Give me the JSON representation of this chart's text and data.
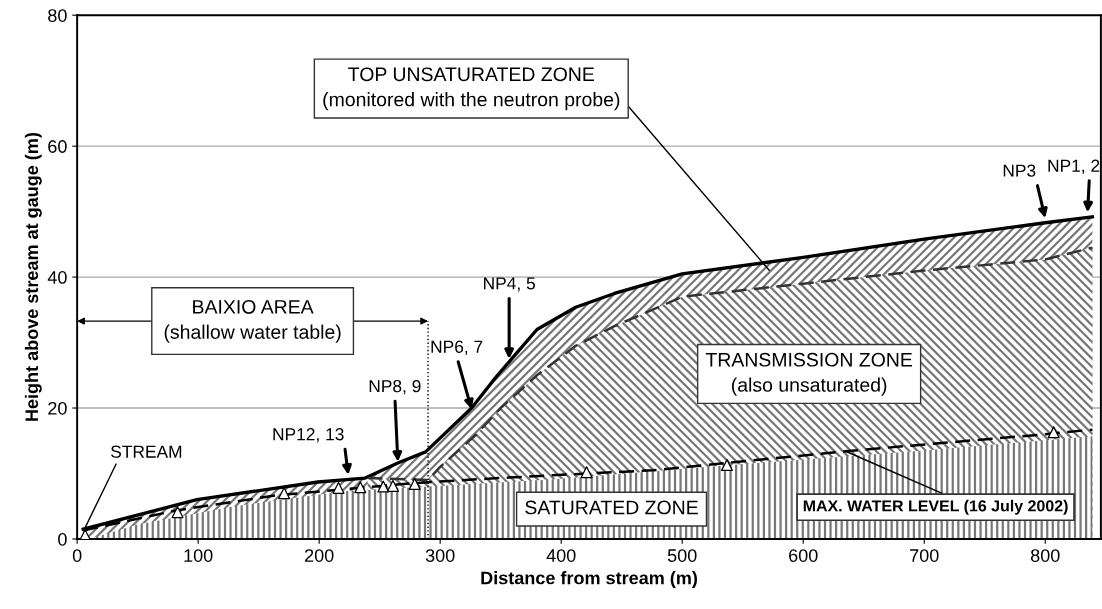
{
  "chart_data": {
    "type": "area",
    "xlabel": "Distance from stream (m)",
    "ylabel": "Height above stream at gauge (m)",
    "xlim": [
      0,
      846
    ],
    "ylim": [
      0,
      80
    ],
    "xticks": [
      0,
      100,
      200,
      300,
      400,
      500,
      600,
      700,
      800
    ],
    "yticks": [
      0,
      20,
      40,
      60,
      80
    ],
    "grid": "y",
    "series": [
      {
        "color": "#000000",
        "line_style": "solid",
        "x": [
          5,
          99,
          199,
          238,
          265,
          288,
          326,
          346,
          380,
          412,
          444,
          500,
          600,
          700,
          800,
          839
        ],
        "values": [
          1.5,
          6,
          8.7,
          9.3,
          11.6,
          13.3,
          20,
          24.7,
          32,
          35.4,
          37.5,
          40.5,
          43,
          45.8,
          48.3,
          49.2
        ]
      },
      {
        "color": "#333333",
        "line_style": "dashed",
        "x": [
          240,
          290,
          300,
          330,
          350,
          380,
          412,
          444,
          500,
          600,
          700,
          800,
          839
        ],
        "values": [
          9.3,
          9,
          11,
          16,
          20,
          25,
          29.5,
          32.5,
          37,
          39,
          41,
          42.7,
          44.5
        ]
      },
      {
        "color": "#777777",
        "x": [
          10,
          50,
          130,
          220,
          310,
          400,
          540,
          700,
          839
        ],
        "values": [
          0,
          2.2,
          5,
          7.3,
          8.2,
          9.2,
          11.3,
          13.5,
          15.7
        ]
      },
      {
        "type": "line",
        "color": "#000000",
        "line_style": "dashed",
        "x": [
          5,
          83,
          166,
          276,
          348,
          476,
          635,
          800,
          839
        ],
        "values": [
          1.3,
          4.4,
          6.7,
          8.5,
          9.3,
          10.5,
          13.4,
          16,
          16.7
        ]
      },
      {
        "type": "scatter",
        "color": "#000000",
        "marker": "triangle",
        "x": [
          6.6,
          83,
          171,
          216,
          234,
          253,
          261,
          279,
          421,
          537,
          807
        ],
        "values": [
          0.6,
          4.1,
          7,
          7.8,
          7.9,
          8,
          8.1,
          8.4,
          10.2,
          11.3,
          16.3
        ]
      }
    ],
    "ref_lines": [
      {
        "axis": "x",
        "value": 290,
        "label": "BAIXIO AREA\n(shallow water table)",
        "line_style": "dotted"
      }
    ],
    "annotations": [
      {
        "text": "NP12, 13",
        "x": 224,
        "y": 9.8
      },
      {
        "text": "NP8, 9",
        "x": 265,
        "y": 11.8
      },
      {
        "text": "NP6, 7",
        "x": 326,
        "y": 19.8
      },
      {
        "text": "NP4, 5",
        "x": 357,
        "y": 27.5
      },
      {
        "text": "NP3",
        "x": 800,
        "y": 49
      },
      {
        "text": "NP1, 2",
        "x": 835,
        "y": 49.9
      },
      {
        "text": "STREAM",
        "x": 6,
        "y": 1.5
      },
      "TOP UNSATURATED ZONE\n(monitored with the neutron probe)",
      {
        "text": "MAX. WATER LEVEL (16 July 2002)",
        "x": 635,
        "y": 13.4
      },
      "TRANSMISSION ZONE\n(also unsaturated)",
      "SATURATED ZONE"
    ]
  }
}
